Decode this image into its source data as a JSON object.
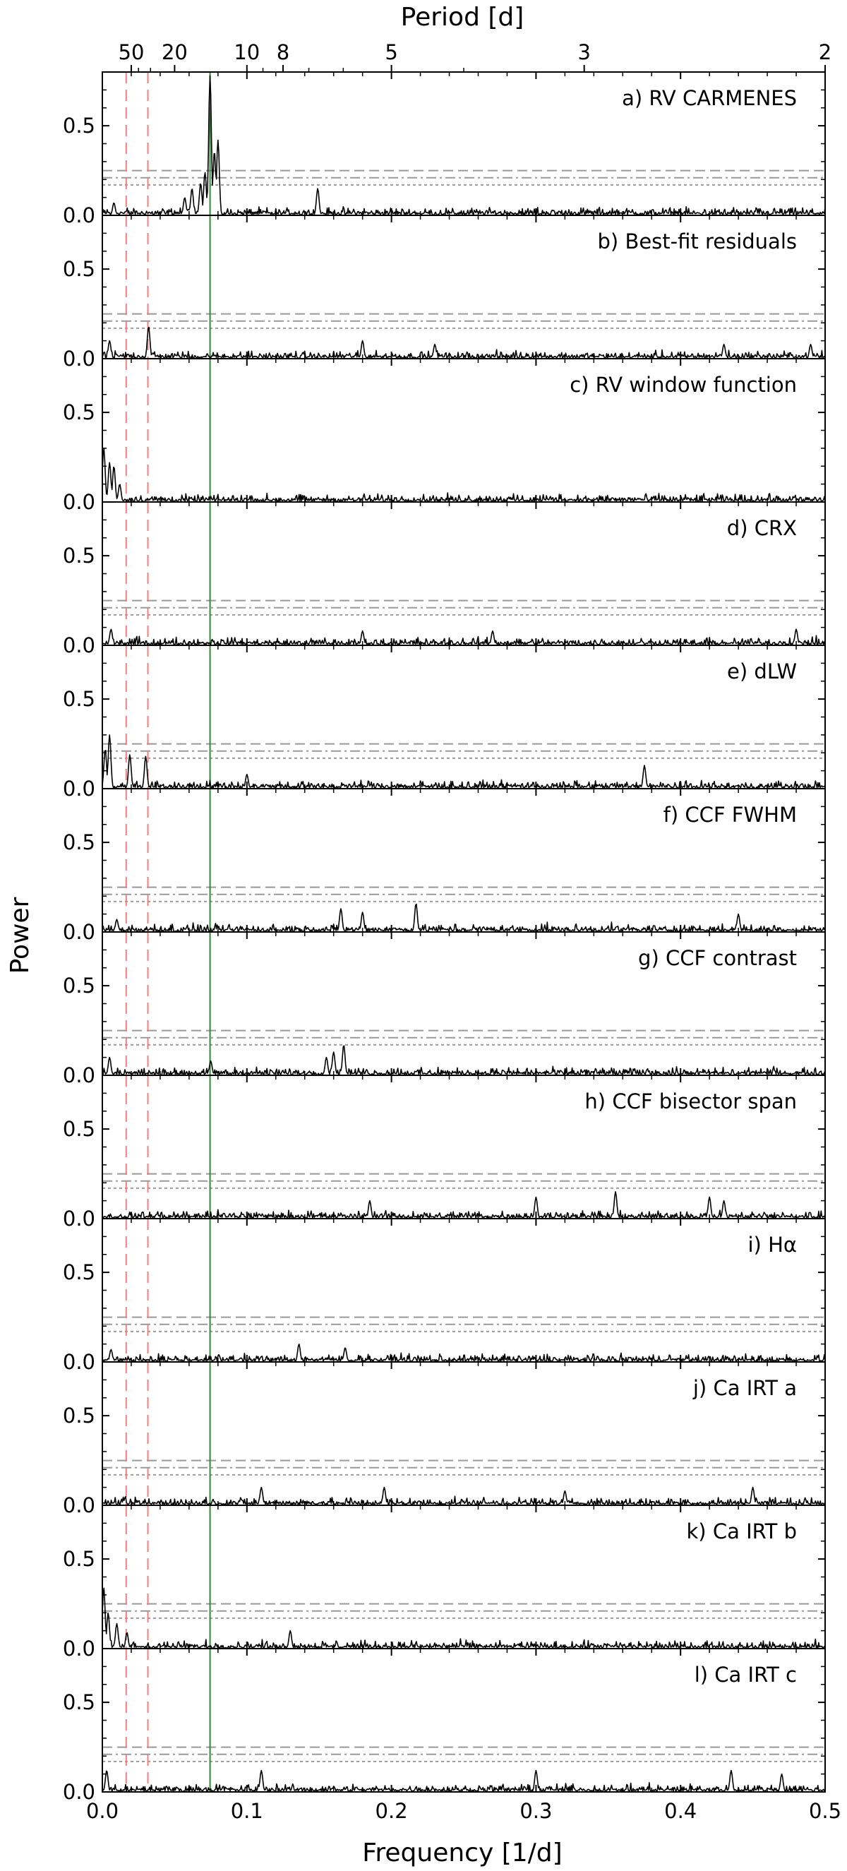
{
  "chart_data": {
    "type": "line",
    "title": "",
    "xlabel": "Frequency [1/d]",
    "ylabel": "Power",
    "top_axis_label": "Period [d]",
    "xlim": [
      0.0,
      0.5
    ],
    "ylim": [
      0.0,
      0.8
    ],
    "x_ticks": [
      "0.0",
      "0.1",
      "0.2",
      "0.3",
      "0.4",
      "0.5"
    ],
    "x_tick_values": [
      0.0,
      0.1,
      0.2,
      0.3,
      0.4,
      0.5
    ],
    "y_ticks": [
      "0.0",
      "0.5"
    ],
    "y_tick_values": [
      0.0,
      0.5
    ],
    "top_ticks": [
      "50",
      "20",
      "10",
      "8",
      "5",
      "3",
      "2"
    ],
    "top_tick_periods": [
      50,
      20,
      10,
      8,
      5,
      3,
      2
    ],
    "grid": false,
    "colors": {
      "series": "#000000",
      "marker_line": "#2e8b2e",
      "dashed_lines": "#f08080",
      "fap_lines": "#999999"
    },
    "vertical_lines": [
      {
        "x": 0.0745,
        "style": "solid",
        "color": "#2e8b2e"
      },
      {
        "x": 0.0165,
        "style": "dashed",
        "color": "#f08080"
      },
      {
        "x": 0.0315,
        "style": "dashed",
        "color": "#f08080"
      }
    ],
    "panels": [
      {
        "label": "a) RV CARMENES",
        "fap_levels": [
          0.25,
          0.21,
          0.17
        ],
        "peaks": [
          {
            "x": 0.0745,
            "y": 0.78
          },
          {
            "x": 0.08,
            "y": 0.42
          },
          {
            "x": 0.0775,
            "y": 0.36
          },
          {
            "x": 0.071,
            "y": 0.24
          },
          {
            "x": 0.068,
            "y": 0.18
          },
          {
            "x": 0.062,
            "y": 0.15
          },
          {
            "x": 0.149,
            "y": 0.15
          },
          {
            "x": 0.057,
            "y": 0.1
          },
          {
            "x": 0.008,
            "y": 0.07
          }
        ]
      },
      {
        "label": "b) Best-fit residuals",
        "fap_levels": [
          0.25,
          0.21,
          0.17
        ],
        "peaks": [
          {
            "x": 0.032,
            "y": 0.18
          },
          {
            "x": 0.005,
            "y": 0.1
          },
          {
            "x": 0.18,
            "y": 0.1
          },
          {
            "x": 0.23,
            "y": 0.08
          },
          {
            "x": 0.43,
            "y": 0.08
          },
          {
            "x": 0.49,
            "y": 0.08
          }
        ]
      },
      {
        "label": "c) RV window function",
        "fap_levels": [],
        "peaks": [
          {
            "x": 0.001,
            "y": 0.3
          },
          {
            "x": 0.005,
            "y": 0.22
          },
          {
            "x": 0.008,
            "y": 0.2
          },
          {
            "x": 0.012,
            "y": 0.1
          }
        ]
      },
      {
        "label": "d) CRX",
        "fap_levels": [
          0.25,
          0.21,
          0.17
        ],
        "peaks": [
          {
            "x": 0.006,
            "y": 0.09
          },
          {
            "x": 0.18,
            "y": 0.08
          },
          {
            "x": 0.27,
            "y": 0.08
          },
          {
            "x": 0.48,
            "y": 0.09
          }
        ]
      },
      {
        "label": "e) dLW",
        "fap_levels": [
          0.25,
          0.21,
          0.17
        ],
        "peaks": [
          {
            "x": 0.005,
            "y": 0.3
          },
          {
            "x": 0.002,
            "y": 0.22
          },
          {
            "x": 0.019,
            "y": 0.19
          },
          {
            "x": 0.03,
            "y": 0.18
          },
          {
            "x": 0.1,
            "y": 0.08
          },
          {
            "x": 0.375,
            "y": 0.13
          }
        ]
      },
      {
        "label": "f) CCF FWHM",
        "fap_levels": [
          0.25,
          0.21,
          0.17
        ],
        "peaks": [
          {
            "x": 0.217,
            "y": 0.16
          },
          {
            "x": 0.165,
            "y": 0.13
          },
          {
            "x": 0.18,
            "y": 0.11
          },
          {
            "x": 0.44,
            "y": 0.1
          },
          {
            "x": 0.01,
            "y": 0.07
          }
        ]
      },
      {
        "label": "g) CCF contrast",
        "fap_levels": [
          0.25,
          0.21,
          0.17
        ],
        "peaks": [
          {
            "x": 0.167,
            "y": 0.17
          },
          {
            "x": 0.16,
            "y": 0.13
          },
          {
            "x": 0.155,
            "y": 0.1
          },
          {
            "x": 0.005,
            "y": 0.1
          },
          {
            "x": 0.075,
            "y": 0.08
          }
        ]
      },
      {
        "label": "h) CCF bisector span",
        "fap_levels": [
          0.25,
          0.21,
          0.17
        ],
        "peaks": [
          {
            "x": 0.355,
            "y": 0.15
          },
          {
            "x": 0.3,
            "y": 0.12
          },
          {
            "x": 0.42,
            "y": 0.12
          },
          {
            "x": 0.43,
            "y": 0.1
          },
          {
            "x": 0.185,
            "y": 0.1
          }
        ]
      },
      {
        "label": "i) Hα",
        "fap_levels": [
          0.25,
          0.21,
          0.17
        ],
        "peaks": [
          {
            "x": 0.136,
            "y": 0.1
          },
          {
            "x": 0.168,
            "y": 0.08
          },
          {
            "x": 0.006,
            "y": 0.07
          }
        ]
      },
      {
        "label": "j) Ca IRT a",
        "fap_levels": [
          0.25,
          0.21,
          0.17
        ],
        "peaks": [
          {
            "x": 0.195,
            "y": 0.1
          },
          {
            "x": 0.11,
            "y": 0.1
          },
          {
            "x": 0.45,
            "y": 0.1
          },
          {
            "x": 0.32,
            "y": 0.08
          }
        ]
      },
      {
        "label": "k) Ca IRT b",
        "fap_levels": [
          0.25,
          0.21,
          0.17
        ],
        "peaks": [
          {
            "x": 0.001,
            "y": 0.34
          },
          {
            "x": 0.004,
            "y": 0.2
          },
          {
            "x": 0.01,
            "y": 0.14
          },
          {
            "x": 0.13,
            "y": 0.1
          },
          {
            "x": 0.017,
            "y": 0.09
          }
        ]
      },
      {
        "label": "l) Ca IRT c",
        "fap_levels": [
          0.25,
          0.21,
          0.17
        ],
        "peaks": [
          {
            "x": 0.003,
            "y": 0.12
          },
          {
            "x": 0.11,
            "y": 0.12
          },
          {
            "x": 0.3,
            "y": 0.12
          },
          {
            "x": 0.435,
            "y": 0.12
          },
          {
            "x": 0.47,
            "y": 0.1
          }
        ]
      }
    ]
  }
}
